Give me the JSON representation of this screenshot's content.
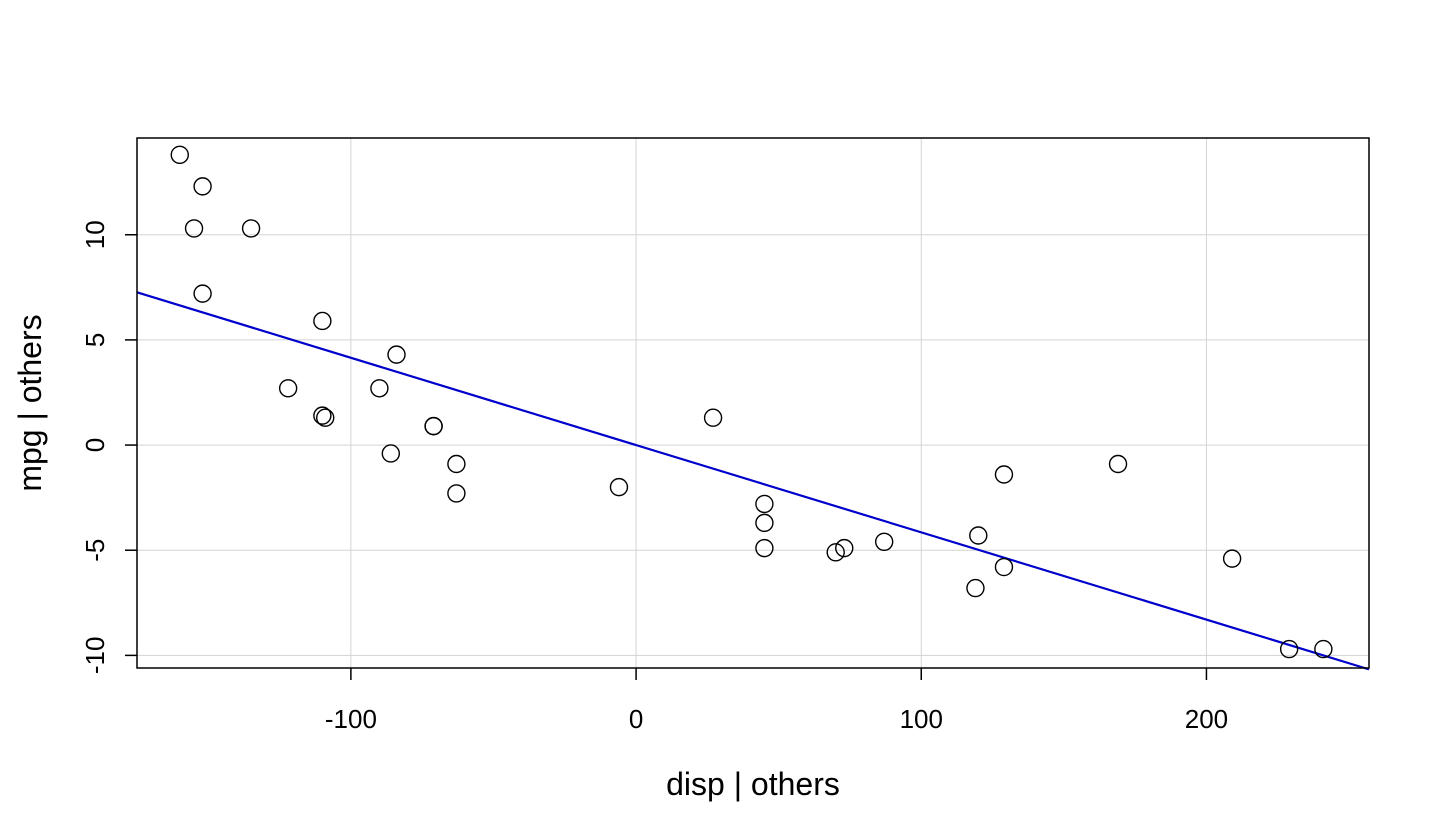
{
  "chart_data": {
    "type": "scatter",
    "title": "",
    "xlabel": "disp | others",
    "ylabel": "mpg  | others",
    "xlim": [
      -175,
      257
    ],
    "ylim": [
      -10.6,
      14.6
    ],
    "x_ticks": [
      -100,
      0,
      100,
      200
    ],
    "y_ticks": [
      -10,
      -5,
      0,
      5,
      10
    ],
    "grid": true,
    "colors": {
      "points": "#000000",
      "line": "#0000cc",
      "grid": "#d3d3d3",
      "frame": "#000000"
    },
    "points": [
      {
        "x": -160,
        "y": 13.8
      },
      {
        "x": -152,
        "y": 12.3
      },
      {
        "x": -155,
        "y": 10.3
      },
      {
        "x": -135,
        "y": 10.3
      },
      {
        "x": -152,
        "y": 7.2
      },
      {
        "x": -110,
        "y": 5.9
      },
      {
        "x": -84,
        "y": 4.3
      },
      {
        "x": -122,
        "y": 2.7
      },
      {
        "x": -90,
        "y": 2.7
      },
      {
        "x": -110,
        "y": 1.4
      },
      {
        "x": -109,
        "y": 1.3
      },
      {
        "x": -71,
        "y": 0.9
      },
      {
        "x": -71,
        "y": 0.9
      },
      {
        "x": -86,
        "y": -0.4
      },
      {
        "x": -63,
        "y": -0.9
      },
      {
        "x": -63,
        "y": -2.3
      },
      {
        "x": -6,
        "y": -2.0
      },
      {
        "x": 27,
        "y": 1.3
      },
      {
        "x": 45,
        "y": -2.8
      },
      {
        "x": 45,
        "y": -3.7
      },
      {
        "x": 45,
        "y": -4.9
      },
      {
        "x": 70,
        "y": -5.1
      },
      {
        "x": 73,
        "y": -4.9
      },
      {
        "x": 87,
        "y": -4.6
      },
      {
        "x": 120,
        "y": -4.3
      },
      {
        "x": 129,
        "y": -1.4
      },
      {
        "x": 129,
        "y": -5.8
      },
      {
        "x": 119,
        "y": -6.8
      },
      {
        "x": 169,
        "y": -0.9
      },
      {
        "x": 209,
        "y": -5.4
      },
      {
        "x": 229,
        "y": -9.7
      },
      {
        "x": 241,
        "y": -9.7
      }
    ],
    "fit_line": {
      "slope": -0.0415,
      "intercept": 0
    }
  }
}
